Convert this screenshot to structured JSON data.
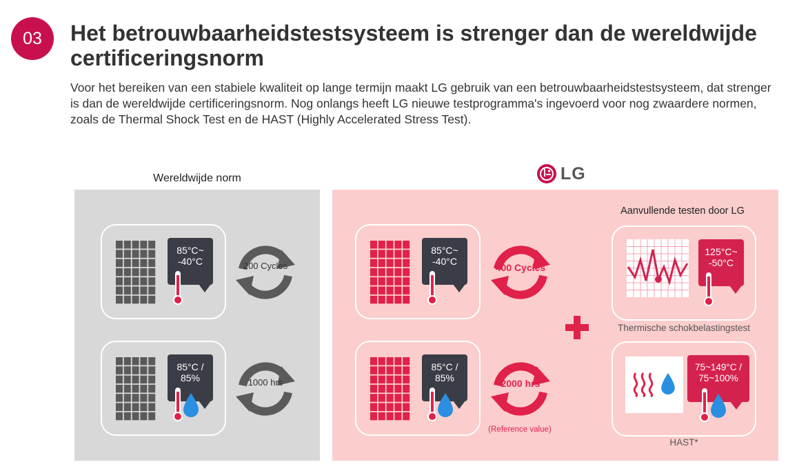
{
  "header": {
    "number": "03",
    "title": "Het betrouwbaarheidstestsysteem is strenger dan de wereldwijde certificeringsnorm",
    "intro": "Voor het bereiken van een stabiele kwaliteit op lange termijn maakt LG gebruik van een betrouwbaarheidstestsysteem, dat strenger is dan de wereldwijde certificeringsnorm. Nog onlangs heeft LG nieuwe testprogramma's ingevoerd voor nog zwaardere normen, zoals de Thermal Shock Test en de HAST (Highly Accelerated Stress Test)."
  },
  "global": {
    "heading": "Wereldwijde norm",
    "test1": {
      "condition": "85°C~\n-40°C",
      "cycle": "200\nCycles"
    },
    "test2": {
      "condition": "85°C /\n85%",
      "cycle": "1000\nhrs"
    }
  },
  "lg": {
    "logo_text": "LG",
    "test1": {
      "condition": "85°C~\n-40°C",
      "cycle": "400\nCycles"
    },
    "test2": {
      "condition": "85°C /\n85%",
      "cycle": "2000\nhrs",
      "note": "(Reference value)"
    },
    "additional": {
      "heading": "Aanvullende testen door LG",
      "thermal": {
        "condition": "125°C~\n-50°C",
        "caption": "Thermische schokbelastingstest"
      },
      "hast": {
        "condition": "75~149°C /\n75~100%",
        "caption": "HAST*"
      }
    }
  },
  "colors": {
    "brand_red": "#c8104f",
    "accent_red": "#e0214a",
    "dark_bubble": "#3a3d45",
    "gray_panel": "#d8d8d8",
    "pink_panel": "#fbcdcd",
    "water_blue": "#2a8fe0"
  },
  "icons": [
    "solar-panel-icon",
    "thermometer-icon",
    "water-drop-icon",
    "cycle-arrows-icon",
    "heat-wave-icon",
    "graph-icon",
    "plus-icon",
    "lg-logo-icon"
  ]
}
